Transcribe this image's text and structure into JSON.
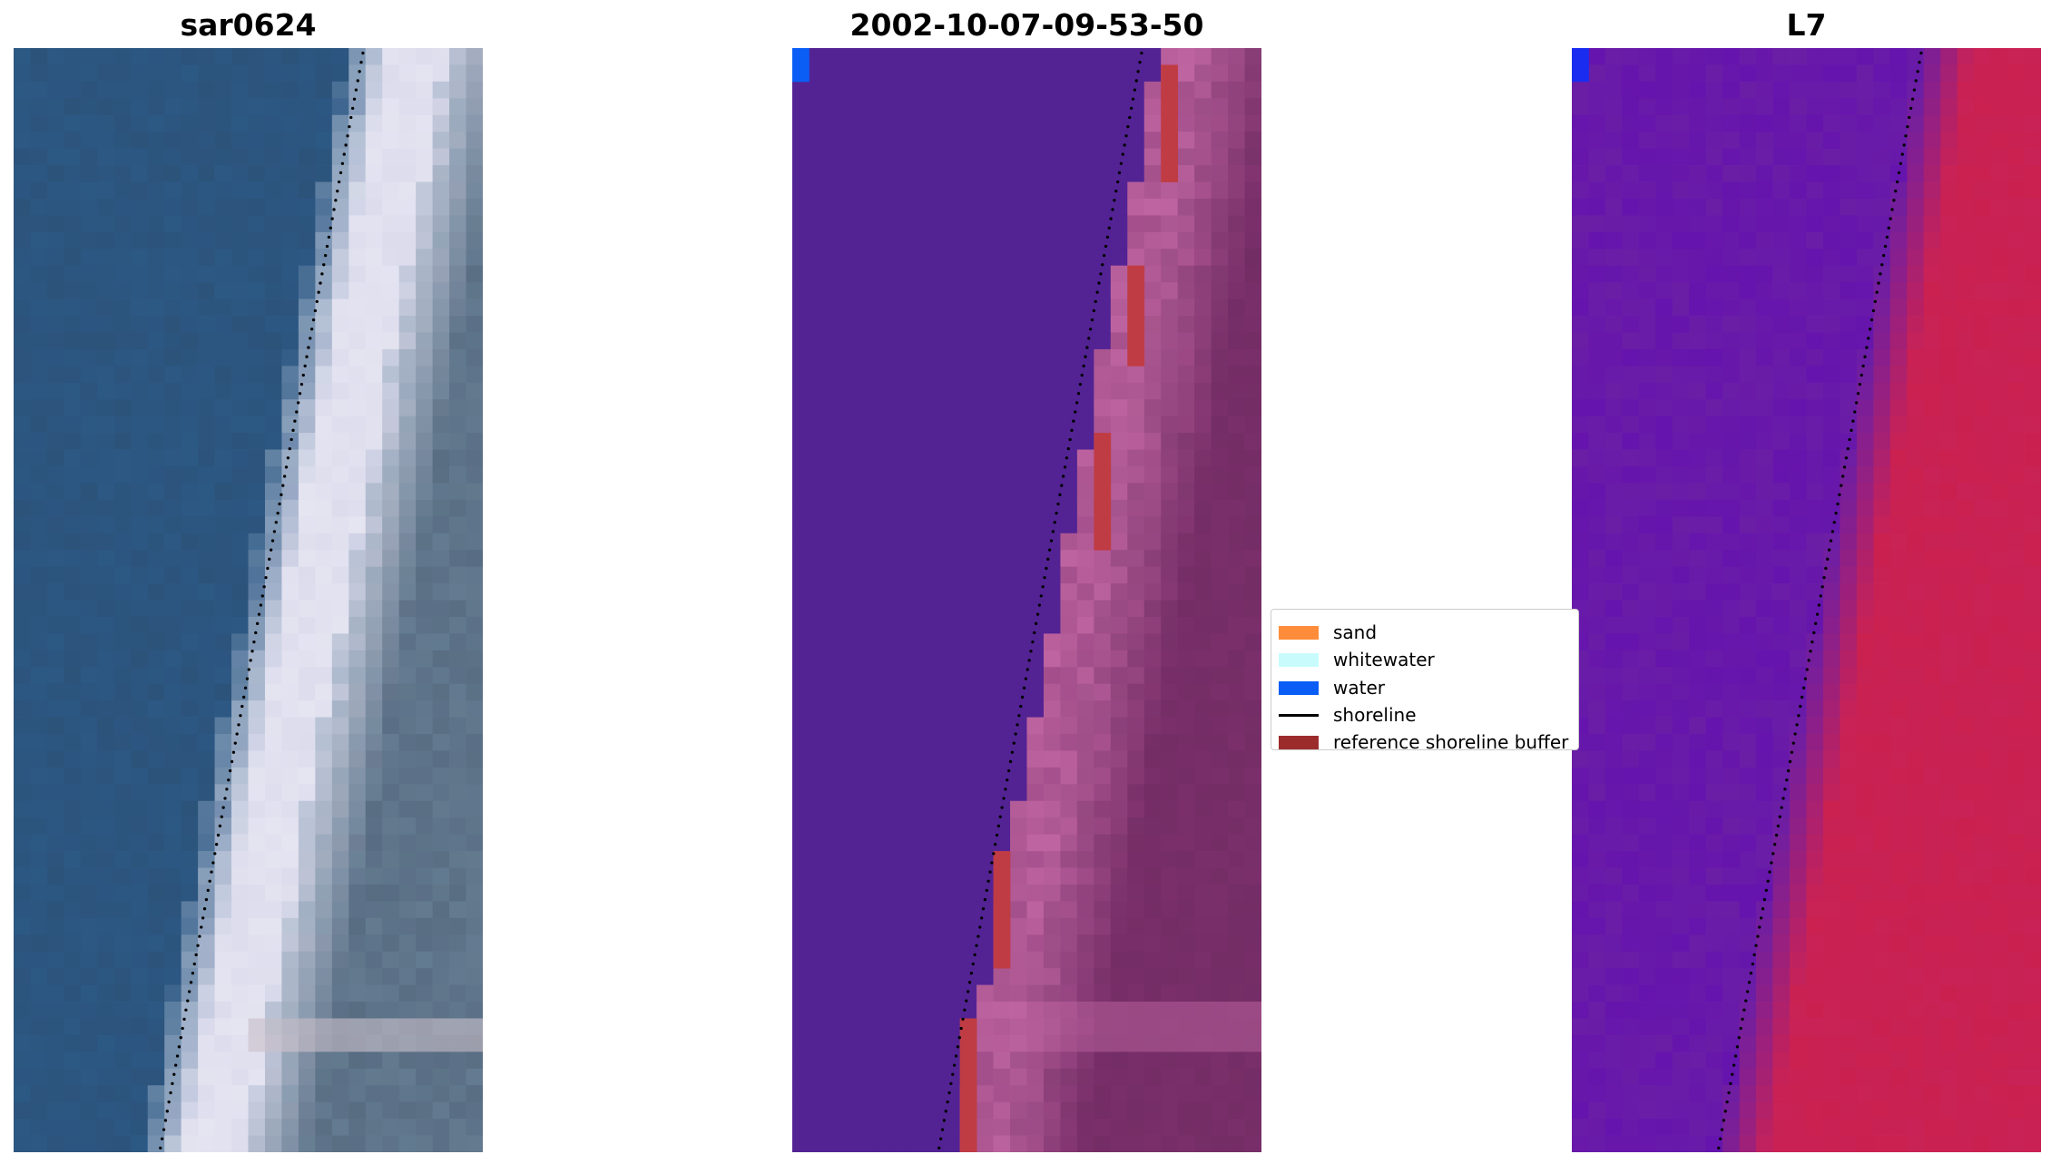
{
  "panels": [
    {
      "title": "sar0624",
      "kind": "rgb"
    },
    {
      "title": "2002-10-07-09-53-50",
      "kind": "classified"
    },
    {
      "title": "L7",
      "kind": "index"
    }
  ],
  "legend": {
    "items": [
      {
        "label": "sand",
        "type": "patch",
        "color": "#ff8c3a"
      },
      {
        "label": "whitewater",
        "type": "patch",
        "color": "#c8fcfc"
      },
      {
        "label": "water",
        "type": "patch",
        "color": "#0a5ef6"
      },
      {
        "label": "shoreline",
        "type": "line",
        "color": "#000000"
      },
      {
        "label": "reference shoreline buffer",
        "type": "patch",
        "color": "#9c2c2c"
      }
    ]
  },
  "colors": {
    "ocean": "#2c5884",
    "beach": "#dcdced",
    "classified_water": "#532394",
    "classified_land": "#7a2f6a",
    "index_water": "#6a1ea6",
    "index_land": "#c82256",
    "buffer": "#c03c44",
    "shoreline": "#000000"
  }
}
